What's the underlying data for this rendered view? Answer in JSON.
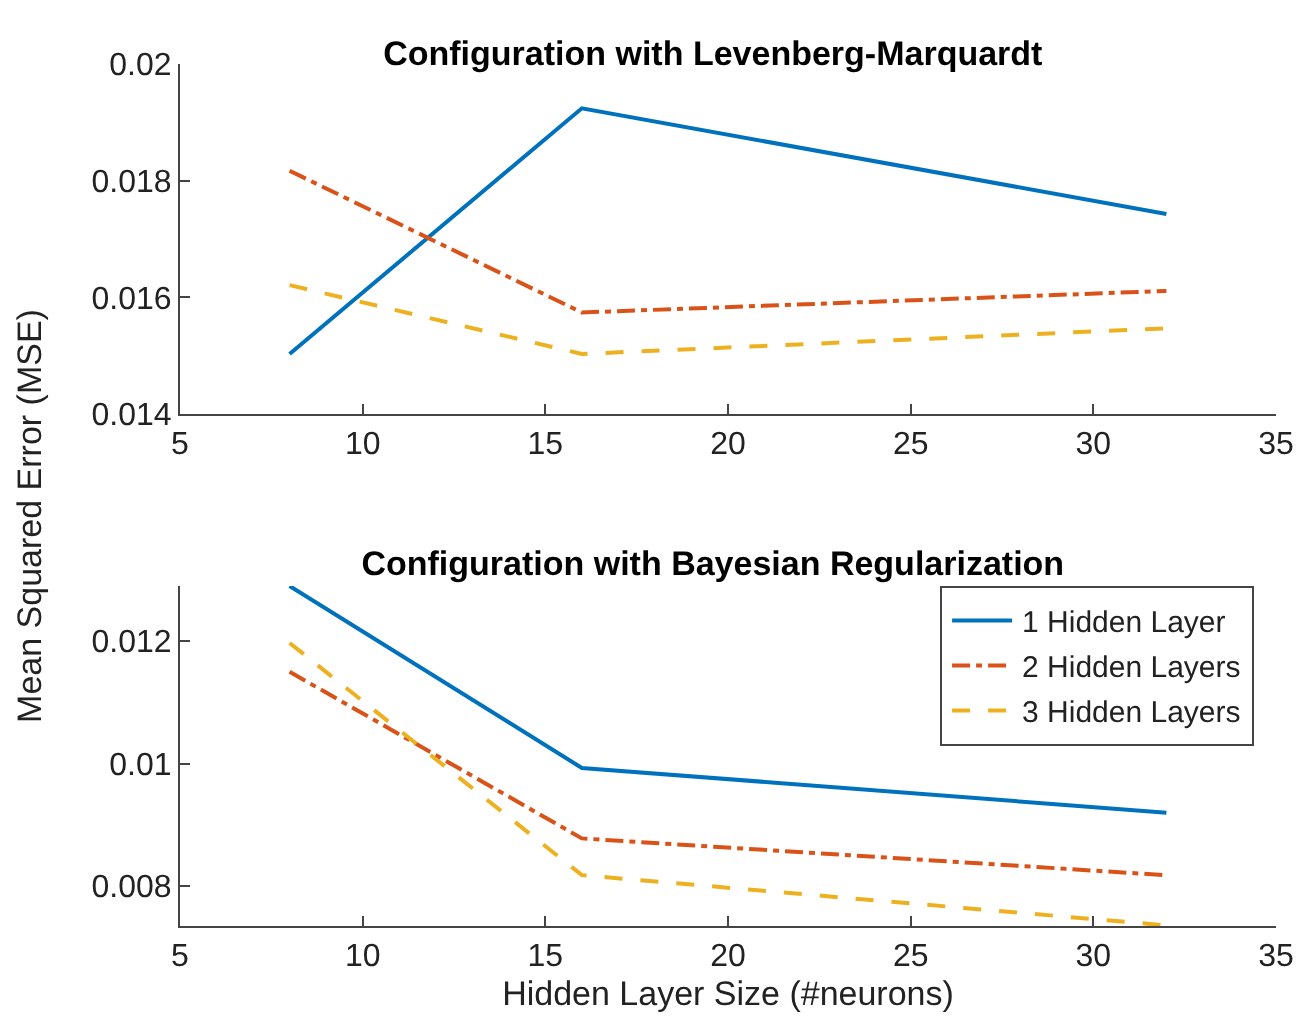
{
  "chart_data": [
    {
      "type": "line",
      "title": "Configuration with Levenberg-Marquardt",
      "ylabel": "Mean Squared Error (MSE)",
      "x": [
        8,
        16,
        32
      ],
      "xlim": [
        5,
        35
      ],
      "xticks": [
        5,
        10,
        15,
        20,
        25,
        30,
        35
      ],
      "ylim": [
        0.014,
        0.02
      ],
      "yticks": [
        0.014,
        0.016,
        0.018,
        0.02
      ],
      "grid": false,
      "legend": false,
      "series": [
        {
          "color": "#0072bd",
          "line_style": "solid",
          "values": [
            0.01503,
            0.01924,
            0.01743
          ]
        },
        {
          "color": "#d95319",
          "line_style": "dashdot",
          "values": [
            0.01817,
            0.01574,
            0.01611
          ]
        },
        {
          "color": "#edb120",
          "line_style": "dashed",
          "values": [
            0.01621,
            0.01503,
            0.01547
          ]
        }
      ]
    },
    {
      "type": "line",
      "title": "Configuration with Bayesian Regularization",
      "xlabel": "Hidden Layer Size (#neurons)",
      "x": [
        8,
        16,
        32
      ],
      "xlim": [
        5,
        35
      ],
      "xticks": [
        5,
        10,
        15,
        20,
        25,
        30,
        35
      ],
      "ylim": [
        0.00735,
        0.0129
      ],
      "yticks": [
        0.008,
        0.01,
        0.012
      ],
      "grid": false,
      "legend": "top right",
      "series": [
        {
          "name": "1 Hidden Layer",
          "color": "#0072bd",
          "line_style": "solid",
          "values": [
            0.0129,
            0.00993,
            0.0092
          ]
        },
        {
          "name": "2 Hidden Layers",
          "color": "#d95319",
          "line_style": "dashdot",
          "values": [
            0.0115,
            0.00878,
            0.00818
          ]
        },
        {
          "name": "3 Hidden Layers",
          "color": "#edb120",
          "line_style": "dashed",
          "values": [
            0.01197,
            0.00818,
            0.00736
          ]
        }
      ]
    }
  ]
}
